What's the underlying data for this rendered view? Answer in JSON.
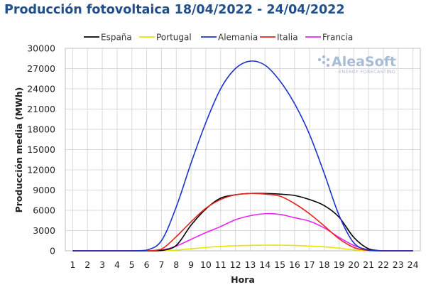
{
  "title": "Producción fotovoltaica 18/04/2022 - 24/04/2022",
  "logo": {
    "name": "AleaSoft",
    "tagline": "ENERGY FORECASTING"
  },
  "chart_data": {
    "type": "line",
    "xlabel": "Hora",
    "ylabel": "Producción media (MWh)",
    "xlim": [
      0.5,
      24.5
    ],
    "ylim": [
      0,
      30000
    ],
    "grid": true,
    "legend_position": "top",
    "x": [
      1,
      2,
      3,
      4,
      5,
      6,
      7,
      8,
      9,
      10,
      11,
      12,
      13,
      14,
      15,
      16,
      17,
      18,
      19,
      20,
      21,
      22,
      23,
      24
    ],
    "yticks": [
      0,
      3000,
      6000,
      9000,
      12000,
      15000,
      18000,
      21000,
      24000,
      27000,
      30000
    ],
    "series": [
      {
        "name": "España",
        "color": "#000000",
        "values": [
          0,
          0,
          0,
          0,
          0,
          0,
          50,
          800,
          3800,
          6200,
          7800,
          8300,
          8500,
          8500,
          8400,
          8200,
          7600,
          6700,
          5000,
          2000,
          300,
          0,
          0,
          0
        ]
      },
      {
        "name": "Portugal",
        "color": "#e6e600",
        "values": [
          0,
          0,
          0,
          0,
          0,
          0,
          0,
          100,
          300,
          500,
          650,
          750,
          800,
          830,
          830,
          800,
          700,
          600,
          400,
          150,
          20,
          0,
          0,
          0
        ]
      },
      {
        "name": "Alemania",
        "color": "#1a33cc",
        "values": [
          0,
          0,
          0,
          0,
          0,
          100,
          1500,
          6500,
          13000,
          19000,
          24000,
          27000,
          28100,
          27500,
          25200,
          21800,
          17300,
          11500,
          5300,
          1200,
          100,
          0,
          0,
          0
        ]
      },
      {
        "name": "Italia",
        "color": "#e62319",
        "values": [
          0,
          0,
          0,
          0,
          0,
          0,
          250,
          2100,
          4300,
          6300,
          7600,
          8300,
          8500,
          8400,
          8100,
          7000,
          5500,
          3700,
          1800,
          500,
          50,
          0,
          0,
          0
        ]
      },
      {
        "name": "Francia",
        "color": "#ee22ee",
        "values": [
          0,
          0,
          0,
          0,
          0,
          0,
          100,
          700,
          1700,
          2700,
          3600,
          4600,
          5200,
          5500,
          5400,
          4900,
          4400,
          3400,
          2000,
          800,
          150,
          0,
          0,
          0
        ]
      }
    ]
  }
}
